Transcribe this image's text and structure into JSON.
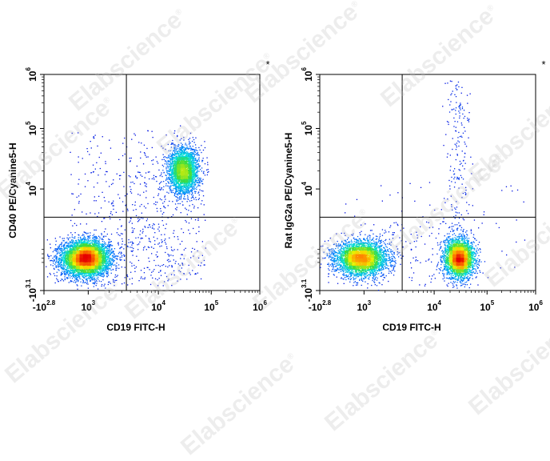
{
  "watermark": {
    "text": "Elabscience",
    "reg": "®"
  },
  "chart_data": [
    {
      "type": "scatter",
      "title": "",
      "xlabel": "CD19 FITC-H",
      "ylabel": "CD40 PE/Cyanine5-H",
      "x_scale": "biexponential",
      "y_scale": "biexponential",
      "xlim": [
        -631,
        1000000
      ],
      "ylim": [
        -1259,
        1000000
      ],
      "x_ticks": [
        {
          "base": "-10",
          "exp": "2.8",
          "value": -631
        },
        {
          "base": "10",
          "exp": "3",
          "value": 1000
        },
        {
          "base": "10",
          "exp": "4",
          "value": 10000
        },
        {
          "base": "10",
          "exp": "5",
          "value": 100000
        },
        {
          "base": "10",
          "exp": "6",
          "value": 1000000
        }
      ],
      "y_ticks": [
        {
          "base": "-10",
          "exp": "3.1",
          "value": -1259
        },
        {
          "base": "10",
          "exp": "4",
          "value": 10000
        },
        {
          "base": "10",
          "exp": "5",
          "value": 100000
        },
        {
          "base": "10",
          "exp": "6",
          "value": 1000000
        }
      ],
      "gate": {
        "x": 3500,
        "y": 3000
      },
      "annotation": "*",
      "populations": [
        {
          "x_center": 900,
          "y_center": 500,
          "events": 5500
        },
        {
          "x_center": 30000,
          "y_center": 20000,
          "events": 2600
        }
      ]
    },
    {
      "type": "scatter",
      "title": "",
      "xlabel": "CD19 FITC-H",
      "ylabel": "Rat IgG2a PE/Cyanine5-H",
      "x_scale": "biexponential",
      "y_scale": "biexponential",
      "xlim": [
        -631,
        1000000
      ],
      "ylim": [
        -1259,
        1000000
      ],
      "x_ticks": [
        {
          "base": "-10",
          "exp": "2.8",
          "value": -631
        },
        {
          "base": "10",
          "exp": "3",
          "value": 1000
        },
        {
          "base": "10",
          "exp": "4",
          "value": 10000
        },
        {
          "base": "10",
          "exp": "5",
          "value": 100000
        },
        {
          "base": "10",
          "exp": "6",
          "value": 1000000
        }
      ],
      "y_ticks": [
        {
          "base": "-10",
          "exp": "3.1",
          "value": -1259
        },
        {
          "base": "10",
          "exp": "4",
          "value": 10000
        },
        {
          "base": "10",
          "exp": "5",
          "value": 100000
        },
        {
          "base": "10",
          "exp": "6",
          "value": 1000000
        }
      ],
      "gate": {
        "x": 3500,
        "y": 3000
      },
      "annotation": "*",
      "populations": [
        {
          "x_center": 900,
          "y_center": 500,
          "events": 3600
        },
        {
          "x_center": 30000,
          "y_center": 500,
          "events": 3000
        }
      ]
    }
  ]
}
